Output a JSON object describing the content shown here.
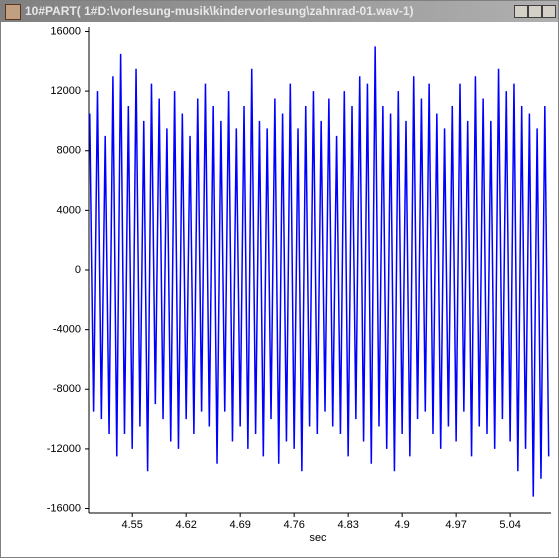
{
  "window": {
    "title": "10#PART( 1#D:\\vorlesung-musik\\kindervorlesung\\zahnrad-01.wav-1)"
  },
  "chart_data": {
    "type": "line",
    "xlabel": "sec",
    "color": "#0000ff",
    "xlim": [
      4.494,
      5.093
    ],
    "xticks": [
      4.55,
      4.62,
      4.69,
      4.76,
      4.83,
      4.9,
      4.97,
      5.04
    ],
    "ylim": [
      -16300,
      16300
    ],
    "yticks": [
      -16000,
      -12000,
      -8000,
      -4000,
      0,
      4000,
      8000,
      12000,
      16000
    ],
    "x": [
      4.495,
      4.5,
      4.505,
      4.51,
      4.515,
      4.52,
      4.525,
      4.53,
      4.535,
      4.54,
      4.545,
      4.55,
      4.555,
      4.56,
      4.565,
      4.57,
      4.575,
      4.58,
      4.585,
      4.59,
      4.595,
      4.6,
      4.605,
      4.61,
      4.615,
      4.62,
      4.625,
      4.63,
      4.635,
      4.64,
      4.645,
      4.65,
      4.655,
      4.66,
      4.665,
      4.67,
      4.675,
      4.68,
      4.685,
      4.69,
      4.695,
      4.7,
      4.705,
      4.71,
      4.715,
      4.72,
      4.725,
      4.73,
      4.735,
      4.74,
      4.745,
      4.75,
      4.755,
      4.76,
      4.765,
      4.77,
      4.775,
      4.78,
      4.785,
      4.79,
      4.795,
      4.8,
      4.805,
      4.81,
      4.815,
      4.82,
      4.825,
      4.83,
      4.835,
      4.84,
      4.845,
      4.85,
      4.855,
      4.86,
      4.865,
      4.87,
      4.875,
      4.88,
      4.885,
      4.89,
      4.895,
      4.9,
      4.905,
      4.91,
      4.915,
      4.92,
      4.925,
      4.93,
      4.935,
      4.94,
      4.945,
      4.95,
      4.955,
      4.96,
      4.965,
      4.97,
      4.975,
      4.98,
      4.985,
      4.99,
      4.995,
      5.0,
      5.005,
      5.01,
      5.015,
      5.02,
      5.025,
      5.03,
      5.035,
      5.04,
      5.045,
      5.05,
      5.055,
      5.06,
      5.065,
      5.07,
      5.075,
      5.08,
      5.085,
      5.09
    ],
    "values": [
      10500,
      -9500,
      12000,
      -10000,
      9000,
      -11000,
      13000,
      -12500,
      14500,
      -11000,
      11000,
      -12000,
      13500,
      -10500,
      10000,
      -13500,
      12500,
      -9000,
      11500,
      -10000,
      9500,
      -11500,
      12000,
      -12000,
      10500,
      -10000,
      9000,
      -11000,
      11500,
      -9500,
      12500,
      -10500,
      11000,
      -13000,
      10000,
      -9500,
      12000,
      -11500,
      9500,
      -10500,
      11000,
      -12000,
      13500,
      -11000,
      10000,
      -12500,
      9500,
      -10000,
      11500,
      -13000,
      10500,
      -11500,
      12500,
      -12000,
      9500,
      -13500,
      11000,
      -10500,
      12000,
      -11000,
      10000,
      -9500,
      11500,
      -10500,
      9000,
      -11000,
      12000,
      -12500,
      11000,
      -10000,
      13000,
      -11500,
      12500,
      -13000,
      15000,
      -10500,
      11000,
      -12000,
      10500,
      -13500,
      12000,
      -11000,
      10000,
      -12500,
      13000,
      -10000,
      11500,
      -9500,
      12500,
      -11000,
      10500,
      -12000,
      9500,
      -10500,
      11000,
      -11500,
      12500,
      -9500,
      10000,
      -12500,
      13000,
      -10500,
      11500,
      -11000,
      10000,
      -12000,
      13500,
      -10000,
      12000,
      -11500,
      12500,
      -13500,
      11000,
      -12000,
      10500,
      -15200,
      9500,
      -14000,
      11000,
      -12500
    ]
  }
}
